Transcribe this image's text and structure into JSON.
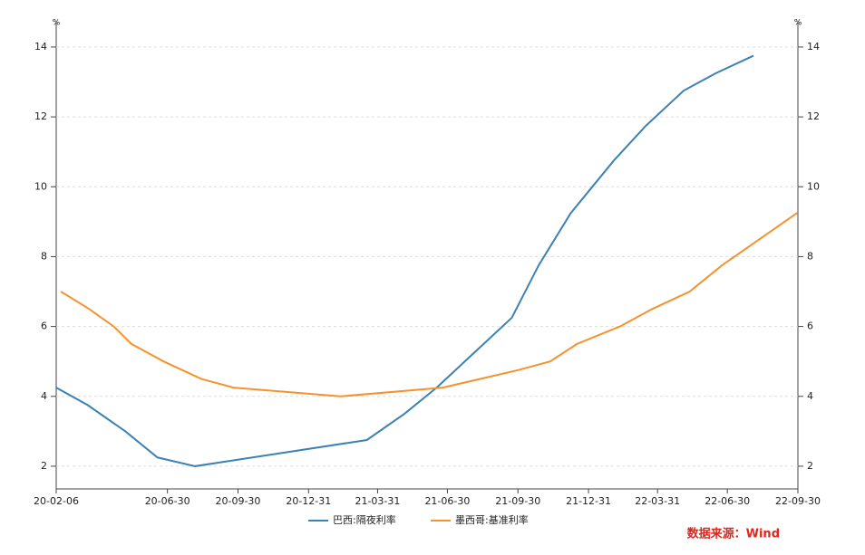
{
  "chart_data": {
    "type": "line",
    "y_unit": "%",
    "y2_unit": "%",
    "xlim": [
      "20-02-06",
      "22-09-30"
    ],
    "xticks": [
      "20-02-06",
      "20-06-30",
      "20-09-30",
      "20-12-31",
      "21-03-31",
      "21-06-30",
      "21-09-30",
      "21-12-31",
      "22-03-31",
      "22-06-30",
      "22-09-30"
    ],
    "ylim": [
      1.35,
      14.75
    ],
    "yticks": [
      2,
      4,
      6,
      8,
      10,
      12,
      14
    ],
    "y2lim": [
      1.35,
      14.75
    ],
    "y2ticks": [
      2,
      4,
      6,
      8,
      10,
      12,
      14
    ],
    "grid": true,
    "legend": "bottom",
    "series": [
      {
        "name": "巴西:隔夜利率",
        "color": "#3b82b3",
        "x": [
          "20-02-06",
          "20-03-18",
          "20-05-06",
          "20-06-17",
          "20-08-05",
          "21-03-17",
          "21-05-05",
          "21-06-16",
          "21-08-04",
          "21-09-22",
          "21-10-27",
          "21-12-08",
          "22-02-02",
          "22-03-16",
          "22-05-04",
          "22-06-15",
          "22-08-03"
        ],
        "values": [
          4.25,
          3.75,
          3.0,
          2.25,
          2.0,
          2.75,
          3.5,
          4.25,
          5.25,
          6.25,
          7.75,
          9.25,
          10.75,
          11.75,
          12.75,
          13.25,
          13.75
        ]
      },
      {
        "name": "墨西哥:基准利率",
        "color": "#f5922f",
        "axis": "y2",
        "x": [
          "20-02-12",
          "20-03-20",
          "20-04-21",
          "20-05-14",
          "20-06-25",
          "20-08-13",
          "20-09-24",
          "21-02-11",
          "21-06-24",
          "21-08-12",
          "21-09-30",
          "21-11-11",
          "21-12-16",
          "22-02-10",
          "22-03-24",
          "22-05-12",
          "22-06-23",
          "22-08-11",
          "22-09-29"
        ],
        "values": [
          7.0,
          6.5,
          6.0,
          5.5,
          5.0,
          4.5,
          4.25,
          4.0,
          4.25,
          4.5,
          4.75,
          5.0,
          5.5,
          6.0,
          6.5,
          7.0,
          7.75,
          8.5,
          9.25
        ]
      }
    ],
    "source": "数据来源：Wind"
  }
}
